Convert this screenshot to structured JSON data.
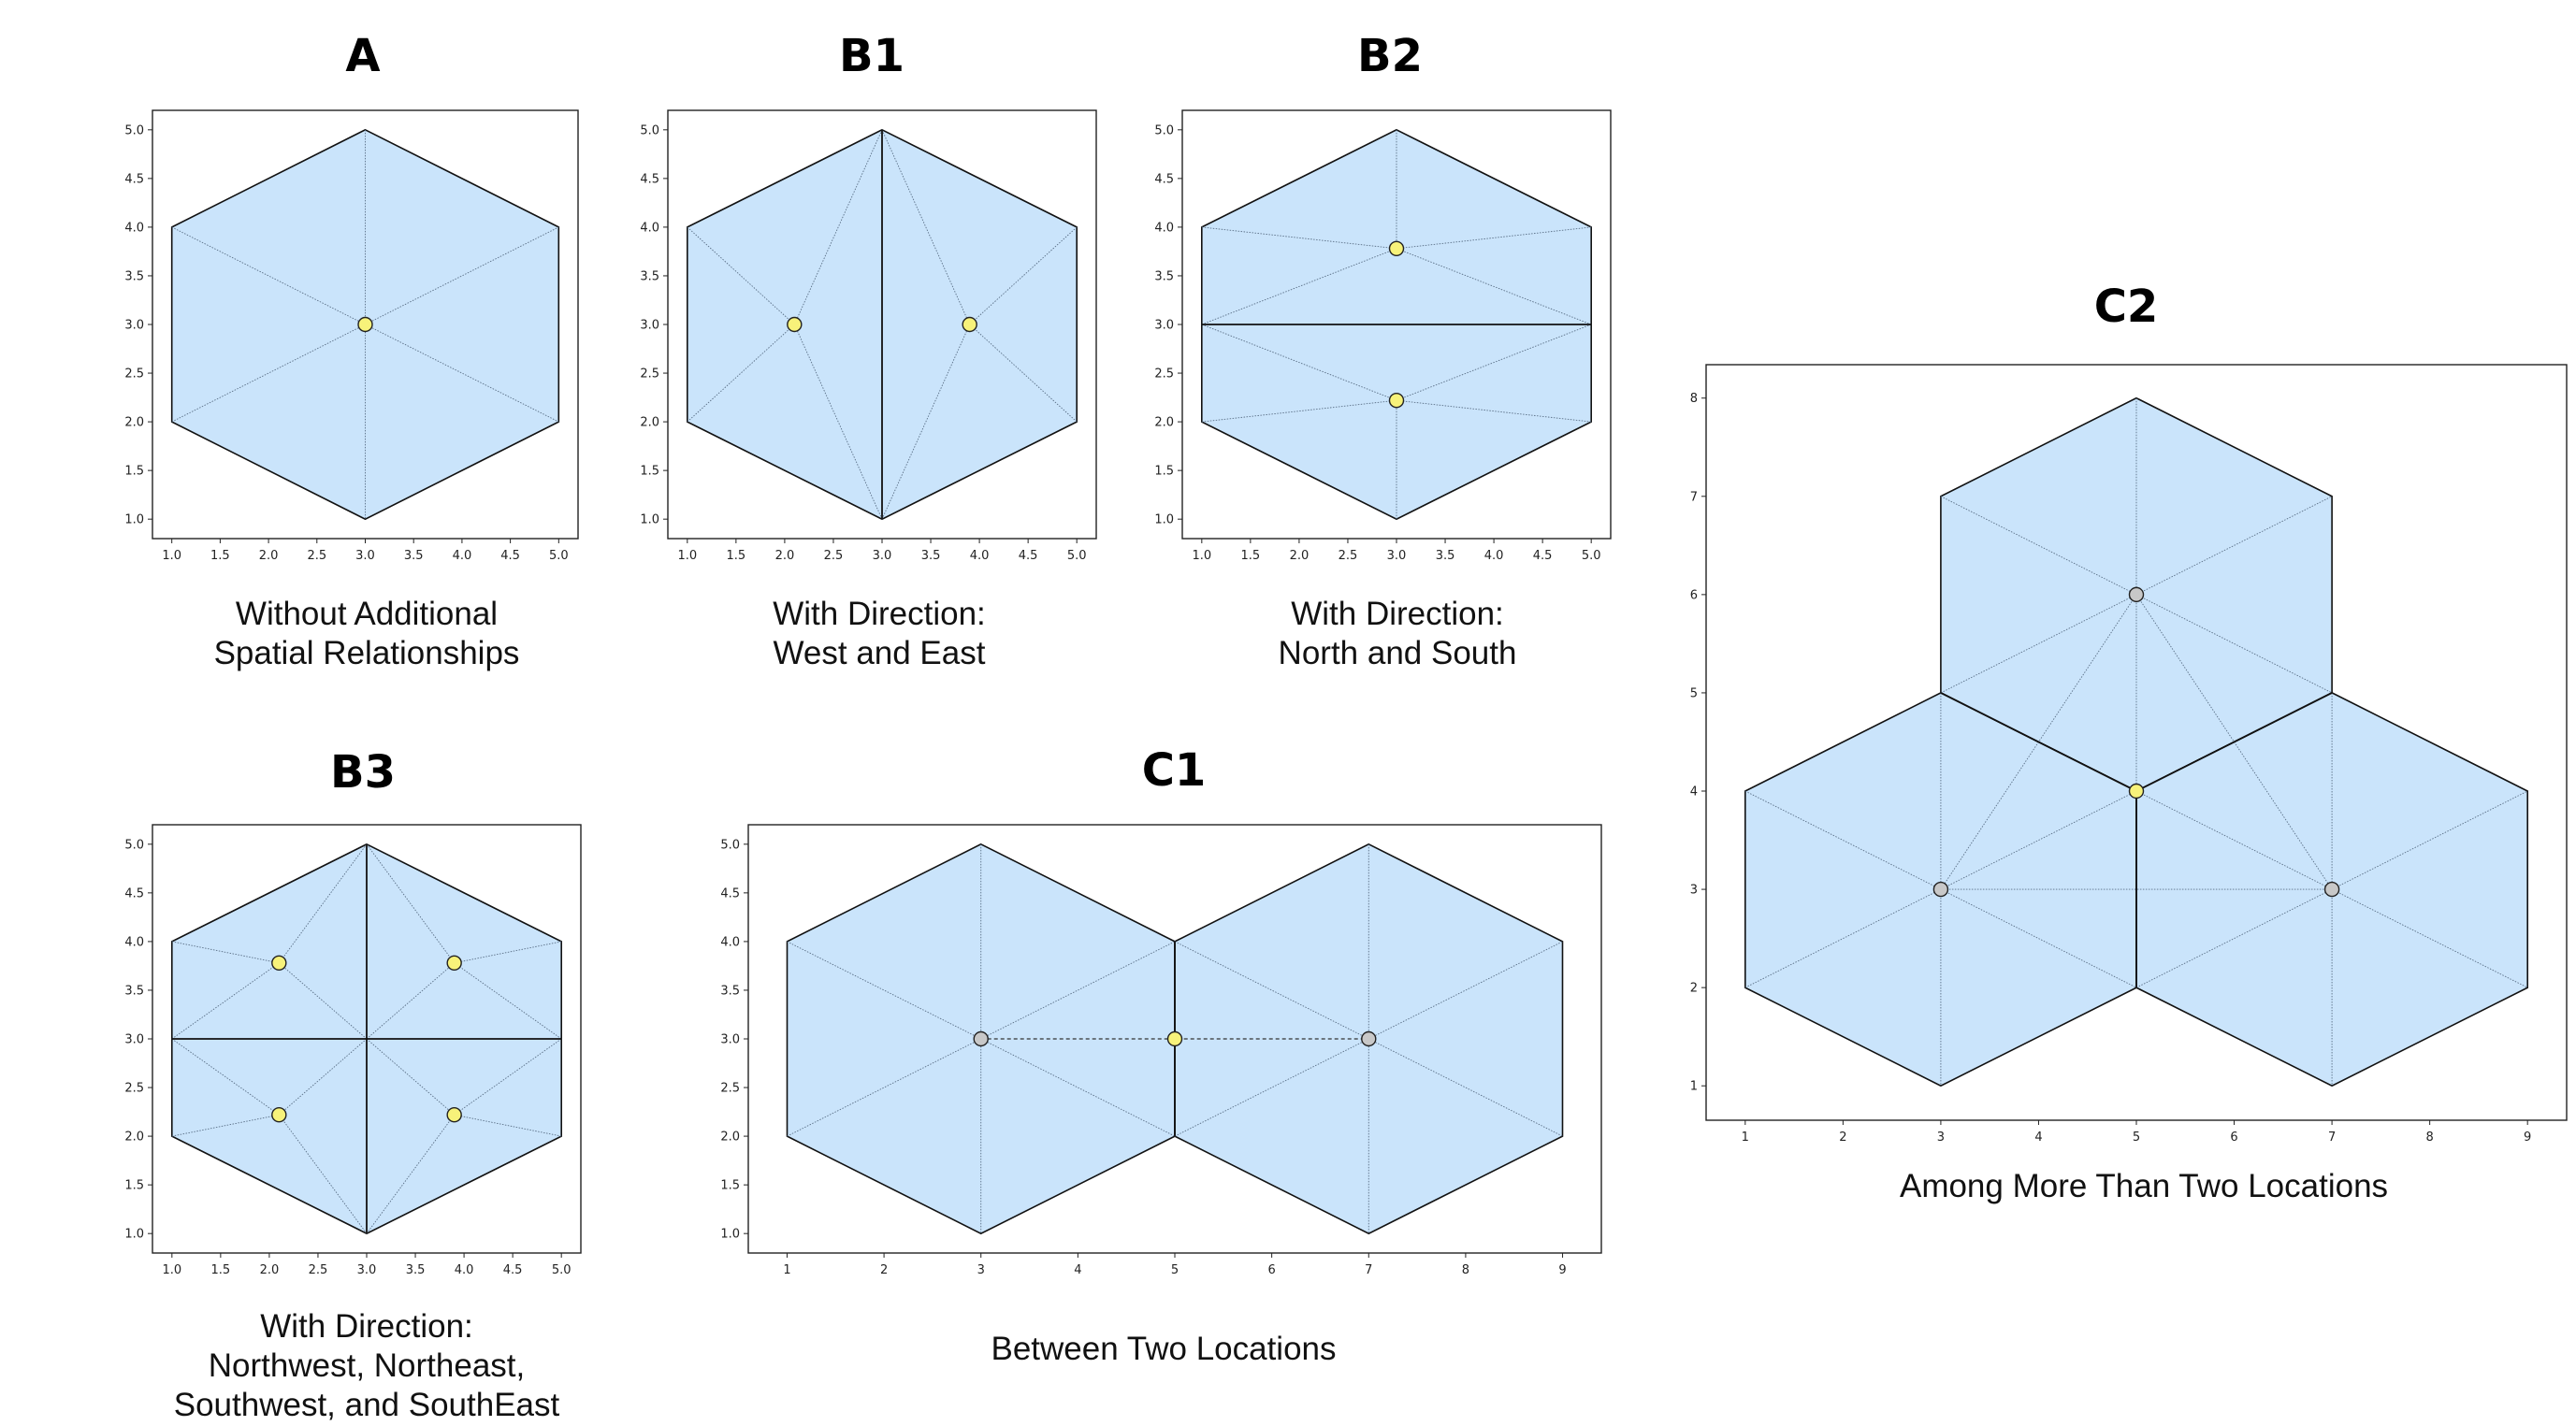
{
  "style": {
    "hex_fill": "#cae4fb",
    "hex_edge": "#111111",
    "inner_line": "#5a6f86",
    "center_point": "#f7f27a",
    "other_point": "#c8c8c8"
  },
  "panels": [
    {
      "id": "A",
      "title": "A",
      "caption": [
        "Without Additional",
        "Spatial Relationships"
      ],
      "chart_data": {
        "type": "diagram",
        "xlim": [
          0.8,
          5.2
        ],
        "ylim": [
          0.8,
          5.2
        ],
        "xticks": [
          "1.0",
          "1.5",
          "2.0",
          "2.5",
          "3.0",
          "3.5",
          "4.0",
          "4.5",
          "5.0"
        ],
        "yticks": [
          "1.0",
          "1.5",
          "2.0",
          "2.5",
          "3.0",
          "3.5",
          "4.0",
          "4.5",
          "5.0"
        ],
        "hexagons": [
          {
            "cx": 3,
            "cy": 3,
            "r": 2
          }
        ],
        "thin_lines": [
          [
            [
              3,
              5
            ],
            [
              3,
              1
            ]
          ],
          [
            [
              1,
              4
            ],
            [
              5,
              2
            ]
          ],
          [
            [
              1,
              2
            ],
            [
              5,
              4
            ]
          ]
        ],
        "thick_lines": [],
        "dashed_lines": [],
        "points": [
          {
            "x": 3,
            "y": 3,
            "kind": "center"
          }
        ]
      }
    },
    {
      "id": "B1",
      "title": "B1",
      "caption": [
        "With Direction:",
        "West and East"
      ],
      "chart_data": {
        "type": "diagram",
        "xlim": [
          0.8,
          5.2
        ],
        "ylim": [
          0.8,
          5.2
        ],
        "xticks": [
          "1.0",
          "1.5",
          "2.0",
          "2.5",
          "3.0",
          "3.5",
          "4.0",
          "4.5",
          "5.0"
        ],
        "yticks": [
          "1.0",
          "1.5",
          "2.0",
          "2.5",
          "3.0",
          "3.5",
          "4.0",
          "4.5",
          "5.0"
        ],
        "hexagons": [
          {
            "cx": 3,
            "cy": 3,
            "r": 2
          }
        ],
        "thin_lines": [
          [
            [
              1,
              4
            ],
            [
              2.1,
              3
            ]
          ],
          [
            [
              1,
              2
            ],
            [
              2.1,
              3
            ]
          ],
          [
            [
              3,
              5
            ],
            [
              2.1,
              3
            ]
          ],
          [
            [
              3,
              1
            ],
            [
              2.1,
              3
            ]
          ],
          [
            [
              5,
              4
            ],
            [
              3.9,
              3
            ]
          ],
          [
            [
              5,
              2
            ],
            [
              3.9,
              3
            ]
          ],
          [
            [
              3,
              5
            ],
            [
              3.9,
              3
            ]
          ],
          [
            [
              3,
              1
            ],
            [
              3.9,
              3
            ]
          ]
        ],
        "thick_lines": [
          [
            [
              3,
              5
            ],
            [
              3,
              1
            ]
          ]
        ],
        "dashed_lines": [],
        "points": [
          {
            "x": 2.1,
            "y": 3,
            "kind": "center"
          },
          {
            "x": 3.9,
            "y": 3,
            "kind": "center"
          }
        ]
      }
    },
    {
      "id": "B2",
      "title": "B2",
      "caption": [
        "With Direction:",
        "North and South"
      ],
      "chart_data": {
        "type": "diagram",
        "xlim": [
          0.8,
          5.2
        ],
        "ylim": [
          0.8,
          5.2
        ],
        "xticks": [
          "1.0",
          "1.5",
          "2.0",
          "2.5",
          "3.0",
          "3.5",
          "4.0",
          "4.5",
          "5.0"
        ],
        "yticks": [
          "1.0",
          "1.5",
          "2.0",
          "2.5",
          "3.0",
          "3.5",
          "4.0",
          "4.5",
          "5.0"
        ],
        "hexagons": [
          {
            "cx": 3,
            "cy": 3,
            "r": 2
          }
        ],
        "thin_lines": [
          [
            [
              3,
              5
            ],
            [
              3,
              3.78
            ]
          ],
          [
            [
              1,
              4
            ],
            [
              3,
              3.78
            ]
          ],
          [
            [
              5,
              4
            ],
            [
              3,
              3.78
            ]
          ],
          [
            [
              1,
              3
            ],
            [
              3,
              3.78
            ]
          ],
          [
            [
              5,
              3
            ],
            [
              3,
              3.78
            ]
          ],
          [
            [
              3,
              1
            ],
            [
              3,
              2.22
            ]
          ],
          [
            [
              1,
              2
            ],
            [
              3,
              2.22
            ]
          ],
          [
            [
              5,
              2
            ],
            [
              3,
              2.22
            ]
          ],
          [
            [
              1,
              3
            ],
            [
              3,
              2.22
            ]
          ],
          [
            [
              5,
              3
            ],
            [
              3,
              2.22
            ]
          ]
        ],
        "thick_lines": [
          [
            [
              1,
              3
            ],
            [
              5,
              3
            ]
          ]
        ],
        "dashed_lines": [],
        "points": [
          {
            "x": 3,
            "y": 3.78,
            "kind": "center"
          },
          {
            "x": 3,
            "y": 2.22,
            "kind": "center"
          }
        ]
      }
    },
    {
      "id": "B3",
      "title": "B3",
      "caption": [
        "With Direction:",
        "Northwest, Northeast,",
        "Southwest, and SouthEast"
      ],
      "chart_data": {
        "type": "diagram",
        "xlim": [
          0.8,
          5.2
        ],
        "ylim": [
          0.8,
          5.2
        ],
        "xticks": [
          "1.0",
          "1.5",
          "2.0",
          "2.5",
          "3.0",
          "3.5",
          "4.0",
          "4.5",
          "5.0"
        ],
        "yticks": [
          "1.0",
          "1.5",
          "2.0",
          "2.5",
          "3.0",
          "3.5",
          "4.0",
          "4.5",
          "5.0"
        ],
        "hexagons": [
          {
            "cx": 3,
            "cy": 3,
            "r": 2
          }
        ],
        "thin_lines": [
          [
            [
              1,
              4
            ],
            [
              2.1,
              3.78
            ]
          ],
          [
            [
              3,
              5
            ],
            [
              2.1,
              3.78
            ]
          ],
          [
            [
              1,
              3
            ],
            [
              2.1,
              3.78
            ]
          ],
          [
            [
              3,
              3
            ],
            [
              2.1,
              3.78
            ]
          ],
          [
            [
              5,
              4
            ],
            [
              3.9,
              3.78
            ]
          ],
          [
            [
              3,
              5
            ],
            [
              3.9,
              3.78
            ]
          ],
          [
            [
              5,
              3
            ],
            [
              3.9,
              3.78
            ]
          ],
          [
            [
              3,
              3
            ],
            [
              3.9,
              3.78
            ]
          ],
          [
            [
              1,
              2
            ],
            [
              2.1,
              2.22
            ]
          ],
          [
            [
              3,
              1
            ],
            [
              2.1,
              2.22
            ]
          ],
          [
            [
              1,
              3
            ],
            [
              2.1,
              2.22
            ]
          ],
          [
            [
              3,
              3
            ],
            [
              2.1,
              2.22
            ]
          ],
          [
            [
              5,
              2
            ],
            [
              3.9,
              2.22
            ]
          ],
          [
            [
              3,
              1
            ],
            [
              3.9,
              2.22
            ]
          ],
          [
            [
              5,
              3
            ],
            [
              3.9,
              2.22
            ]
          ],
          [
            [
              3,
              3
            ],
            [
              3.9,
              2.22
            ]
          ]
        ],
        "thick_lines": [
          [
            [
              3,
              5
            ],
            [
              3,
              1
            ]
          ],
          [
            [
              1,
              3
            ],
            [
              5,
              3
            ]
          ]
        ],
        "dashed_lines": [],
        "points": [
          {
            "x": 2.1,
            "y": 3.78,
            "kind": "center"
          },
          {
            "x": 3.9,
            "y": 3.78,
            "kind": "center"
          },
          {
            "x": 2.1,
            "y": 2.22,
            "kind": "center"
          },
          {
            "x": 3.9,
            "y": 2.22,
            "kind": "center"
          }
        ]
      }
    },
    {
      "id": "C1",
      "title": "C1",
      "caption": [
        "Between Two Locations"
      ],
      "chart_data": {
        "type": "diagram",
        "xlim": [
          0.6,
          9.4
        ],
        "ylim": [
          0.8,
          5.2
        ],
        "xticks": [
          "1",
          "2",
          "3",
          "4",
          "5",
          "6",
          "7",
          "8",
          "9"
        ],
        "yticks": [
          "1.0",
          "1.5",
          "2.0",
          "2.5",
          "3.0",
          "3.5",
          "4.0",
          "4.5",
          "5.0"
        ],
        "hexagons": [
          {
            "cx": 3,
            "cy": 3,
            "r": 2
          },
          {
            "cx": 7,
            "cy": 3,
            "r": 2
          }
        ],
        "thin_lines": [
          [
            [
              3,
              5
            ],
            [
              3,
              1
            ]
          ],
          [
            [
              1,
              4
            ],
            [
              5,
              2
            ]
          ],
          [
            [
              1,
              2
            ],
            [
              5,
              4
            ]
          ],
          [
            [
              7,
              5
            ],
            [
              7,
              1
            ]
          ],
          [
            [
              5,
              4
            ],
            [
              9,
              2
            ]
          ],
          [
            [
              5,
              2
            ],
            [
              9,
              4
            ]
          ]
        ],
        "thick_lines": [
          [
            [
              5,
              4
            ],
            [
              5,
              2
            ]
          ]
        ],
        "dashed_lines": [
          [
            [
              3,
              3
            ],
            [
              7,
              3
            ]
          ]
        ],
        "points": [
          {
            "x": 3,
            "y": 3,
            "kind": "other"
          },
          {
            "x": 5,
            "y": 3,
            "kind": "center"
          },
          {
            "x": 7,
            "y": 3,
            "kind": "other"
          }
        ]
      }
    },
    {
      "id": "C2",
      "title": "C2",
      "caption": [
        "Among More Than Two Locations"
      ],
      "chart_data": {
        "type": "diagram",
        "xlim": [
          0.6,
          9.4
        ],
        "ylim": [
          0.65,
          8.34
        ],
        "xticks": [
          "1",
          "2",
          "3",
          "4",
          "5",
          "6",
          "7",
          "8",
          "9"
        ],
        "yticks": [
          "1",
          "2",
          "3",
          "4",
          "5",
          "6",
          "7",
          "8"
        ],
        "hexagons": [
          {
            "cx": 5,
            "cy": 6,
            "r": 2
          },
          {
            "cx": 3,
            "cy": 3,
            "r": 2
          },
          {
            "cx": 7,
            "cy": 3,
            "r": 2
          }
        ],
        "thin_lines": [
          [
            [
              5,
              8
            ],
            [
              5,
              4
            ]
          ],
          [
            [
              3,
              7
            ],
            [
              7,
              5
            ]
          ],
          [
            [
              3,
              5
            ],
            [
              7,
              7
            ]
          ],
          [
            [
              3,
              5
            ],
            [
              3,
              1
            ]
          ],
          [
            [
              1,
              4
            ],
            [
              5,
              2
            ]
          ],
          [
            [
              1,
              2
            ],
            [
              5,
              4
            ]
          ],
          [
            [
              7,
              5
            ],
            [
              7,
              1
            ]
          ],
          [
            [
              5,
              4
            ],
            [
              9,
              2
            ]
          ],
          [
            [
              5,
              2
            ],
            [
              9,
              4
            ]
          ],
          [
            [
              5,
              6
            ],
            [
              3,
              3
            ]
          ],
          [
            [
              5,
              6
            ],
            [
              7,
              3
            ]
          ],
          [
            [
              3,
              3
            ],
            [
              7,
              3
            ]
          ]
        ],
        "thick_lines": [
          [
            [
              3,
              5
            ],
            [
              5,
              4
            ]
          ],
          [
            [
              5,
              4
            ],
            [
              7,
              5
            ]
          ],
          [
            [
              5,
              4
            ],
            [
              5,
              2
            ]
          ]
        ],
        "dashed_lines": [],
        "points": [
          {
            "x": 5,
            "y": 6,
            "kind": "other"
          },
          {
            "x": 3,
            "y": 3,
            "kind": "other"
          },
          {
            "x": 7,
            "y": 3,
            "kind": "other"
          },
          {
            "x": 5,
            "y": 4,
            "kind": "center"
          }
        ]
      }
    }
  ]
}
